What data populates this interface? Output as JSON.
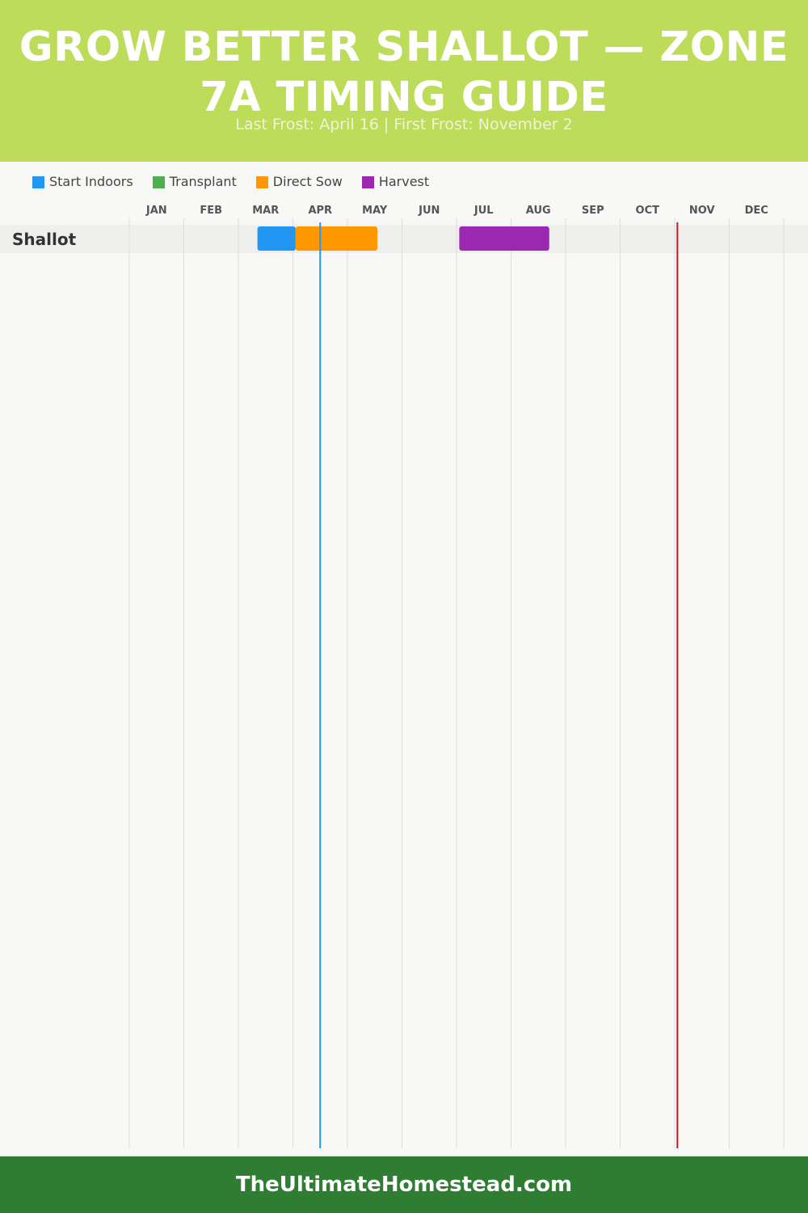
{
  "header": {
    "title": "GROW BETTER SHALLOT — ZONE 7A TIMING GUIDE",
    "subtitle": "Last Frost: April 16 | First Frost: November 2"
  },
  "legend": [
    {
      "label": "Start Indoors",
      "color": "#2196f3"
    },
    {
      "label": "Transplant",
      "color": "#4caf50"
    },
    {
      "label": "Direct Sow",
      "color": "#ff9800"
    },
    {
      "label": "Harvest",
      "color": "#9c27b0"
    }
  ],
  "chart_data": {
    "type": "gantt",
    "months": [
      "JAN",
      "FEB",
      "MAR",
      "APR",
      "MAY",
      "JUN",
      "JUL",
      "AUG",
      "SEP",
      "OCT",
      "NOV",
      "DEC"
    ],
    "x_unit": "month of year (1 = Jan 1, 13 = end of Dec)",
    "rows": [
      {
        "label": "Shallot",
        "phases": [
          {
            "phase": "Start Indoors",
            "start": 3.35,
            "end": 4.05
          },
          {
            "phase": "Direct Sow",
            "start": 4.05,
            "end": 5.55
          },
          {
            "phase": "Harvest",
            "start": 7.05,
            "end": 8.7
          }
        ]
      }
    ],
    "markers": [
      {
        "name": "Last Frost",
        "date": "April 16",
        "value": 4.5,
        "color": "#2196f3"
      },
      {
        "name": "First Frost",
        "date": "November 2",
        "value": 11.05,
        "color": "#b71c1c"
      }
    ],
    "grid": true
  },
  "footer": {
    "text": "TheUltimateHomestead.com"
  }
}
